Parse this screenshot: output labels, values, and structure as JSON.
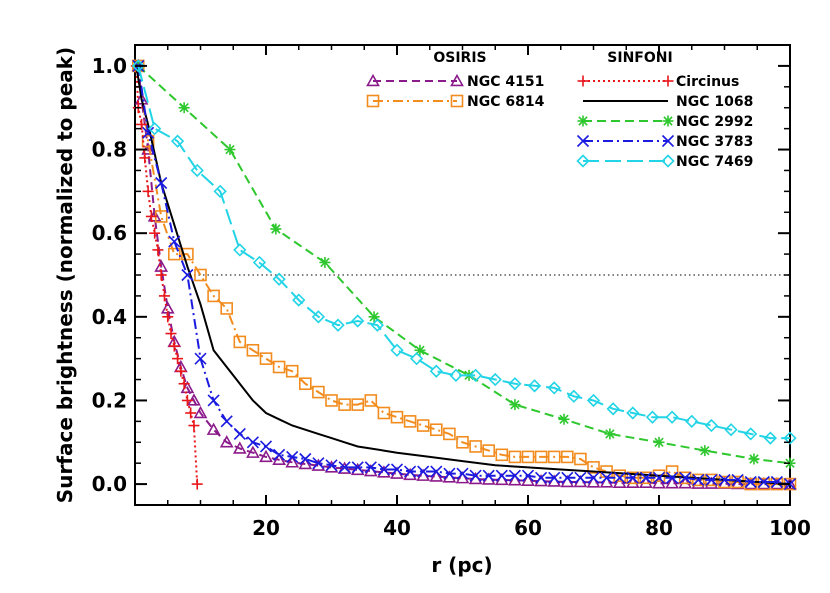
{
  "chart_data": {
    "type": "line",
    "xlabel": "r (pc)",
    "ylabel": "Surface brightness (normalized to peak)",
    "xlim": [
      0,
      100
    ],
    "ylim": [
      -0.05,
      1.05
    ],
    "xticks": [
      20,
      40,
      60,
      80,
      100
    ],
    "xtick_labels": [
      "20",
      "40",
      "60",
      "80",
      "100"
    ],
    "yticks": [
      0.0,
      0.2,
      0.4,
      0.6,
      0.8,
      1.0
    ],
    "ytick_labels": [
      "0.0",
      "0.2",
      "0.4",
      "0.6",
      "0.8",
      "1.0"
    ],
    "reference_line": {
      "y": 0.5,
      "style": "dotted",
      "color": "#555555"
    },
    "legend_groups": [
      {
        "title": "OSIRIS",
        "series": [
          "NGC 4151",
          "NGC 6814"
        ]
      },
      {
        "title": "SINFONI",
        "series": [
          "Circinus",
          "NGC 1068",
          "NGC 2992",
          "NGC 3783",
          "NGC 7469"
        ]
      }
    ],
    "series": [
      {
        "name": "NGC 4151",
        "color": "#8B1A8B",
        "marker": "triangle",
        "dash": "8,5",
        "x": [
          0.5,
          1,
          2,
          3,
          4,
          5,
          6,
          7,
          8,
          9,
          10,
          12,
          14,
          16,
          18,
          20,
          22,
          24,
          26,
          28,
          30,
          32,
          34,
          36,
          38,
          40,
          42,
          44,
          46,
          48,
          50,
          52,
          54,
          56,
          58,
          60,
          62,
          64,
          66,
          68,
          70,
          72,
          74,
          76,
          78,
          80,
          82,
          84,
          86,
          88,
          90,
          92,
          94,
          96,
          98,
          100
        ],
        "y": [
          1.0,
          0.92,
          0.8,
          0.64,
          0.52,
          0.42,
          0.34,
          0.28,
          0.23,
          0.2,
          0.17,
          0.13,
          0.1,
          0.085,
          0.075,
          0.065,
          0.058,
          0.052,
          0.048,
          0.044,
          0.04,
          0.037,
          0.034,
          0.031,
          0.028,
          0.025,
          0.022,
          0.02,
          0.018,
          0.016,
          0.014,
          0.012,
          0.011,
          0.01,
          0.009,
          0.008,
          0.007,
          0.006,
          0.005,
          0.005,
          0.004,
          0.004,
          0.003,
          0.003,
          0.003,
          0.002,
          0.002,
          0.002,
          0.001,
          0.001,
          0.001,
          0.0,
          0.0,
          0.0,
          0.0,
          0.0
        ]
      },
      {
        "name": "NGC 6814",
        "color": "#F28C1F",
        "marker": "square",
        "dash": "10,4,2,4",
        "x": [
          0.5,
          2,
          4,
          6,
          8,
          10,
          12,
          14,
          16,
          18,
          20,
          22,
          24,
          26,
          28,
          30,
          32,
          34,
          36,
          38,
          40,
          42,
          44,
          46,
          48,
          50,
          52,
          54,
          56,
          58,
          60,
          62,
          64,
          66,
          68,
          70,
          72,
          74,
          76,
          78,
          80,
          82,
          84,
          86,
          88,
          90,
          92,
          94,
          96,
          98,
          100
        ],
        "y": [
          1.0,
          0.82,
          0.64,
          0.55,
          0.55,
          0.5,
          0.45,
          0.42,
          0.34,
          0.32,
          0.3,
          0.28,
          0.27,
          0.24,
          0.22,
          0.2,
          0.19,
          0.19,
          0.2,
          0.17,
          0.16,
          0.15,
          0.14,
          0.13,
          0.12,
          0.1,
          0.09,
          0.08,
          0.07,
          0.065,
          0.065,
          0.065,
          0.065,
          0.065,
          0.06,
          0.04,
          0.03,
          0.02,
          0.015,
          0.015,
          0.02,
          0.03,
          0.015,
          0.01,
          0.01,
          0.005,
          0.005,
          0.0,
          0.0,
          0.0,
          0.0
        ]
      },
      {
        "name": "Circinus",
        "color": "#E8161A",
        "marker": "plus",
        "dash": "2,3",
        "x": [
          0.2,
          0.5,
          1,
          1.5,
          2,
          2.5,
          3,
          3.5,
          4,
          4.5,
          5,
          5.5,
          6,
          6.5,
          7,
          7.5,
          8,
          8.5,
          9,
          9.5
        ],
        "y": [
          1.0,
          0.9,
          0.86,
          0.78,
          0.7,
          0.64,
          0.6,
          0.56,
          0.5,
          0.45,
          0.4,
          0.36,
          0.33,
          0.3,
          0.27,
          0.24,
          0.2,
          0.17,
          0.14,
          0.0
        ]
      },
      {
        "name": "NGC 1068",
        "color": "#000000",
        "marker": "none",
        "dash": "",
        "x": [
          0.2,
          1,
          2,
          4,
          6,
          8,
          10,
          12,
          14,
          16,
          18,
          20,
          22,
          24,
          26,
          28,
          30,
          32,
          34,
          36,
          38,
          40,
          45,
          50,
          55,
          60,
          65,
          70,
          75,
          80,
          85,
          90,
          95,
          100
        ],
        "y": [
          1.0,
          0.92,
          0.86,
          0.72,
          0.62,
          0.52,
          0.43,
          0.32,
          0.28,
          0.24,
          0.2,
          0.17,
          0.155,
          0.14,
          0.13,
          0.12,
          0.11,
          0.1,
          0.09,
          0.085,
          0.08,
          0.075,
          0.065,
          0.055,
          0.045,
          0.04,
          0.035,
          0.03,
          0.025,
          0.02,
          0.015,
          0.01,
          0.005,
          0.0
        ]
      },
      {
        "name": "NGC 2992",
        "color": "#2EC82E",
        "marker": "asterisk",
        "dash": "9,5",
        "x": [
          0.5,
          7.5,
          14.5,
          21.5,
          29,
          36.5,
          43.5,
          51,
          58,
          65.5,
          72.5,
          80,
          87,
          94.5,
          100
        ],
        "y": [
          1.0,
          0.9,
          0.8,
          0.61,
          0.53,
          0.4,
          0.32,
          0.26,
          0.19,
          0.155,
          0.12,
          0.1,
          0.08,
          0.06,
          0.05
        ]
      },
      {
        "name": "NGC 3783",
        "color": "#1A1AE0",
        "marker": "x",
        "dash": "10,4,2,4",
        "x": [
          0.5,
          2,
          4,
          6,
          8,
          10,
          12,
          14,
          16,
          18,
          20,
          22,
          24,
          26,
          28,
          30,
          32,
          34,
          36,
          38,
          40,
          42,
          44,
          46,
          48,
          50,
          52,
          54,
          56,
          58,
          60,
          62,
          64,
          66,
          68,
          70,
          72,
          74,
          76,
          78,
          80,
          82,
          84,
          86,
          88,
          90,
          92,
          94,
          96,
          98,
          100
        ],
        "y": [
          1.0,
          0.84,
          0.72,
          0.58,
          0.5,
          0.3,
          0.2,
          0.15,
          0.12,
          0.1,
          0.09,
          0.07,
          0.065,
          0.06,
          0.05,
          0.045,
          0.04,
          0.04,
          0.04,
          0.035,
          0.035,
          0.03,
          0.03,
          0.03,
          0.025,
          0.025,
          0.02,
          0.02,
          0.02,
          0.02,
          0.02,
          0.015,
          0.015,
          0.015,
          0.015,
          0.015,
          0.015,
          0.015,
          0.015,
          0.015,
          0.015,
          0.015,
          0.015,
          0.01,
          0.01,
          0.01,
          0.01,
          0.005,
          0.005,
          0.005,
          0.0
        ]
      },
      {
        "name": "NGC 7469",
        "color": "#22D4E6",
        "marker": "diamond",
        "dash": "16,6",
        "x": [
          0.5,
          3,
          6.5,
          9.5,
          13,
          16,
          19,
          22,
          25,
          28,
          31,
          34,
          37,
          40,
          43,
          46,
          49,
          52,
          55,
          58,
          61,
          64,
          67,
          70,
          73,
          76,
          79,
          82,
          85,
          88,
          91,
          94,
          97,
          100
        ],
        "y": [
          1.0,
          0.85,
          0.82,
          0.75,
          0.7,
          0.56,
          0.53,
          0.49,
          0.44,
          0.4,
          0.38,
          0.39,
          0.38,
          0.32,
          0.3,
          0.27,
          0.26,
          0.26,
          0.25,
          0.24,
          0.235,
          0.23,
          0.21,
          0.2,
          0.18,
          0.17,
          0.16,
          0.16,
          0.15,
          0.14,
          0.13,
          0.12,
          0.11,
          0.11
        ]
      }
    ]
  }
}
